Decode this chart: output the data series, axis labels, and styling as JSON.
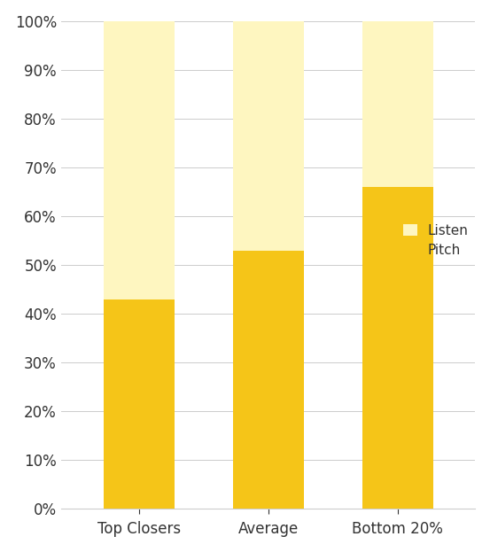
{
  "categories": [
    "Top Closers",
    "Average",
    "Bottom 20%"
  ],
  "pitch_values": [
    43,
    53,
    66
  ],
  "listen_values": [
    57,
    47,
    34
  ],
  "pitch_color": "#F5C518",
  "listen_color": "#FEF6C0",
  "background_color": "#FFFFFF",
  "ylim": [
    0,
    100
  ],
  "legend_labels": [
    "Listen",
    "Pitch"
  ],
  "legend_colors": [
    "#FEF6C0",
    "#F5C518"
  ],
  "bar_width": 0.55,
  "grid_color": "#CCCCCC",
  "tick_color": "#333333",
  "label_fontsize": 12,
  "legend_fontsize": 11,
  "figsize": [
    5.53,
    6.23
  ],
  "dpi": 100
}
